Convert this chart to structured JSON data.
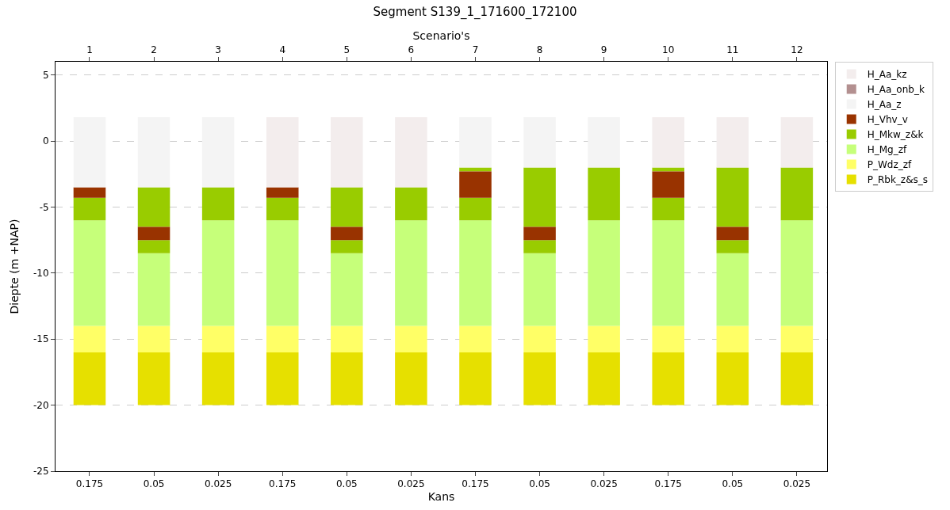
{
  "chart_data": {
    "type": "bar",
    "title": "Segment S139_1_171600_172100",
    "xlabel": "Kans",
    "x2label": "Scenario's",
    "ylabel": "Diepte (m +NAP)",
    "categories": [
      "0.175",
      "0.05",
      "0.025",
      "0.175",
      "0.05",
      "0.025",
      "0.175",
      "0.05",
      "0.025",
      "0.175",
      "0.05",
      "0.025"
    ],
    "x2lim": [
      0.47,
      12.47
    ],
    "x2ticks": [
      1,
      2,
      3,
      4,
      5,
      6,
      7,
      8,
      9,
      10,
      11,
      12
    ],
    "ylim": [
      -25,
      6
    ],
    "yticks": [
      -25,
      -20,
      -15,
      -10,
      -5,
      0,
      5
    ],
    "grid": "y",
    "legend": "top right",
    "series": [
      {
        "name": "P_Rbk_z&s_s",
        "color": "#e6e000",
        "values": [
          4,
          4,
          4,
          4,
          4,
          4,
          4,
          4,
          4,
          4,
          4,
          4
        ],
        "base": [
          -20,
          -20,
          -20,
          -20,
          -20,
          -20,
          -20,
          -20,
          -20,
          -20,
          -20,
          -20
        ]
      },
      {
        "name": "P_Wdz_zf",
        "color": "#ffff66",
        "values": [
          2,
          2,
          2,
          2,
          2,
          2,
          2,
          2,
          2,
          2,
          2,
          2
        ],
        "base": [
          -16,
          -16,
          -16,
          -16,
          -16,
          -16,
          -16,
          -16,
          -16,
          -16,
          -16,
          -16
        ]
      },
      {
        "name": "H_Mg_zf",
        "color": "#c6ff7a",
        "values": [
          8,
          5.5,
          8,
          8,
          5.5,
          8,
          8,
          5.5,
          8,
          8,
          5.5,
          8
        ],
        "base": [
          -14,
          -14,
          -14,
          -14,
          -14,
          -14,
          -14,
          -14,
          -14,
          -14,
          -14,
          -14
        ]
      },
      {
        "color": "#99cc00",
        "values": [
          null,
          3,
          null,
          null,
          3,
          null,
          0.3,
          4.5,
          null,
          0.3,
          4.5,
          null
        ],
        "base": [
          null,
          -6.5,
          null,
          null,
          -6.5,
          null,
          -2.3,
          -6.5,
          null,
          -2.3,
          -6.5,
          null
        ]
      },
      {
        "name": "H_Mkw_z&k",
        "color": "#99cc00",
        "values": [
          1.7,
          1,
          2.5,
          1.7,
          1,
          2.5,
          1.7,
          1,
          4,
          1.7,
          1,
          4
        ],
        "base": [
          -6,
          -8.5,
          -6,
          -6,
          -8.5,
          -6,
          -6,
          -8.5,
          -6,
          -6,
          -8.5,
          -6
        ]
      },
      {
        "name": "H_Vhv_v",
        "color": "#993300",
        "values": [
          0.8,
          1,
          null,
          0.8,
          1,
          null,
          2,
          1,
          null,
          2,
          1,
          null
        ],
        "base": [
          -4.3,
          -7.5,
          null,
          -4.3,
          -7.5,
          null,
          -4.3,
          -7.5,
          null,
          -4.3,
          -7.5,
          null
        ]
      },
      {
        "name": "H_Aa_z",
        "color": "#f4f4f4",
        "values": [
          5.3,
          5.3,
          5.3,
          null,
          null,
          null,
          3.8,
          3.8,
          3.8,
          null,
          null,
          null
        ],
        "base": [
          -3.5,
          -3.5,
          -3.5,
          null,
          null,
          null,
          -2,
          -2,
          -2,
          null,
          null,
          null
        ]
      },
      {
        "name": "H_Aa_onb_k",
        "color": "#b39090",
        "values": [
          null,
          null,
          null,
          null,
          null,
          null,
          null,
          null,
          null,
          null,
          null,
          null
        ],
        "base": [
          null,
          null,
          null,
          null,
          null,
          null,
          null,
          null,
          null,
          null,
          null,
          null
        ]
      },
      {
        "name": "H_Aa_kz",
        "color": "#f3eded",
        "values": [
          null,
          null,
          null,
          5.3,
          5.3,
          5.3,
          null,
          null,
          null,
          3.8,
          3.8,
          3.8
        ],
        "base": [
          null,
          null,
          null,
          -3.5,
          -3.5,
          -3.5,
          null,
          null,
          null,
          -2,
          -2,
          -2
        ]
      }
    ]
  }
}
